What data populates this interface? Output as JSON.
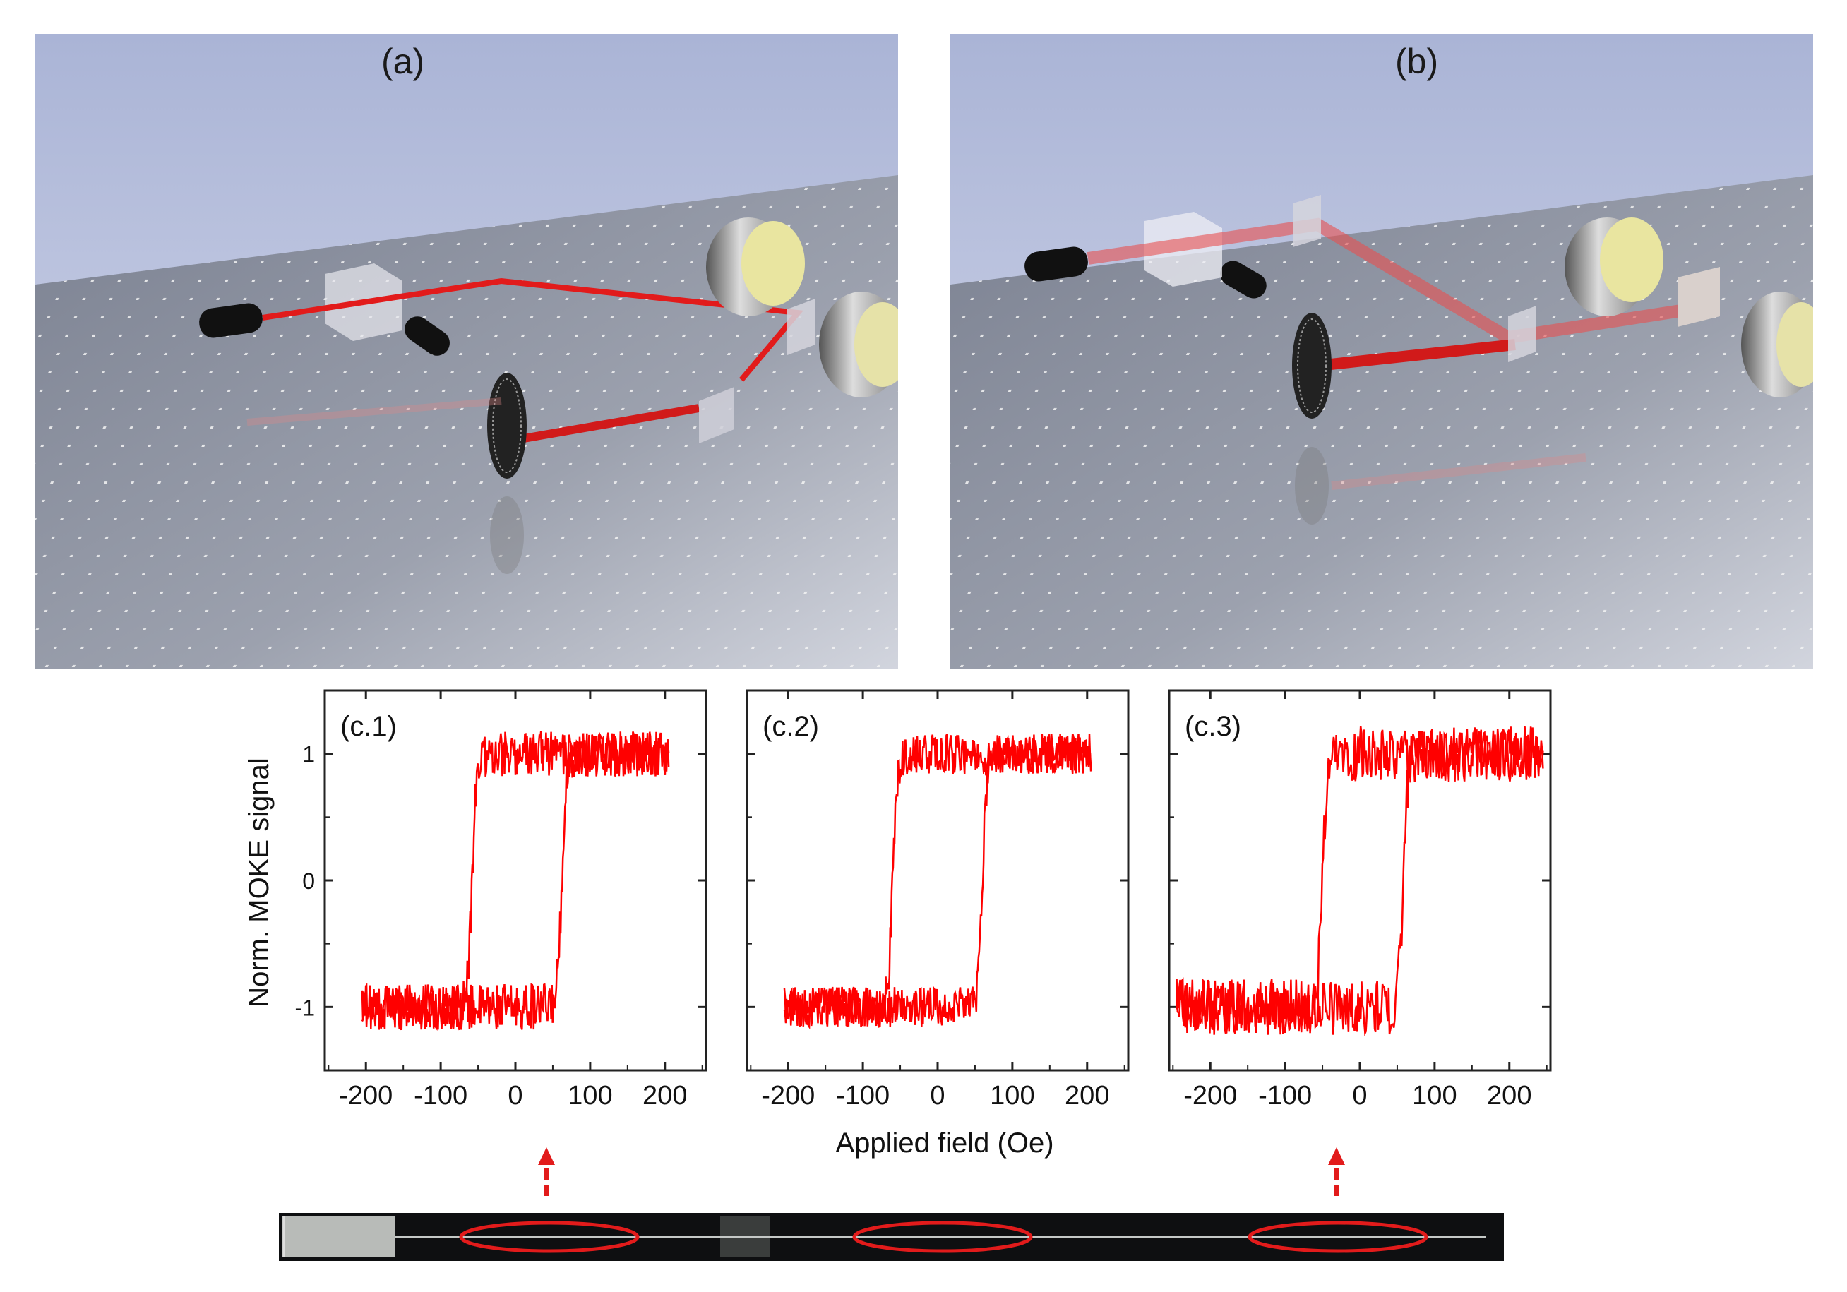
{
  "panels": {
    "a": {
      "label": "(a)"
    },
    "b": {
      "label": "(b)"
    }
  },
  "colors": {
    "sky_top": "#aab4d6",
    "sky_bottom": "#d4d8ea",
    "table_top": "#7f8594",
    "table_bottom": "#c9ccd6",
    "beam": "#e21b1b",
    "signal": "#ff0000"
  },
  "chart_data": [
    {
      "type": "line",
      "label": "(c.1)",
      "xlim": [
        -255,
        255
      ],
      "ylim": [
        -1.5,
        1.5
      ],
      "xticks": [
        -200,
        -100,
        0,
        100,
        200
      ],
      "yticks": [
        1,
        0,
        -1
      ],
      "switch_up": 62,
      "switch_down": -58,
      "noise": 0.18,
      "x_range": [
        -205,
        205
      ]
    },
    {
      "type": "line",
      "label": "(c.2)",
      "xlim": [
        -255,
        255
      ],
      "ylim": [
        -1.5,
        1.5
      ],
      "xticks": [
        -200,
        -100,
        0,
        100,
        200
      ],
      "yticks": [
        1,
        0,
        -1
      ],
      "switch_up": 60,
      "switch_down": -60,
      "noise": 0.16,
      "x_range": [
        -205,
        205
      ]
    },
    {
      "type": "line",
      "label": "(c.3)",
      "xlim": [
        -255,
        255
      ],
      "ylim": [
        -1.5,
        1.5
      ],
      "xticks": [
        -200,
        -100,
        0,
        100,
        200
      ],
      "yticks": [
        1,
        0,
        -1
      ],
      "switch_up": 58,
      "switch_down": -50,
      "noise": 0.22,
      "x_range": [
        -245,
        245
      ]
    }
  ],
  "axes": {
    "ylabel": "Norm. MOKE signal",
    "xlabel": "Applied field (Oe)"
  }
}
